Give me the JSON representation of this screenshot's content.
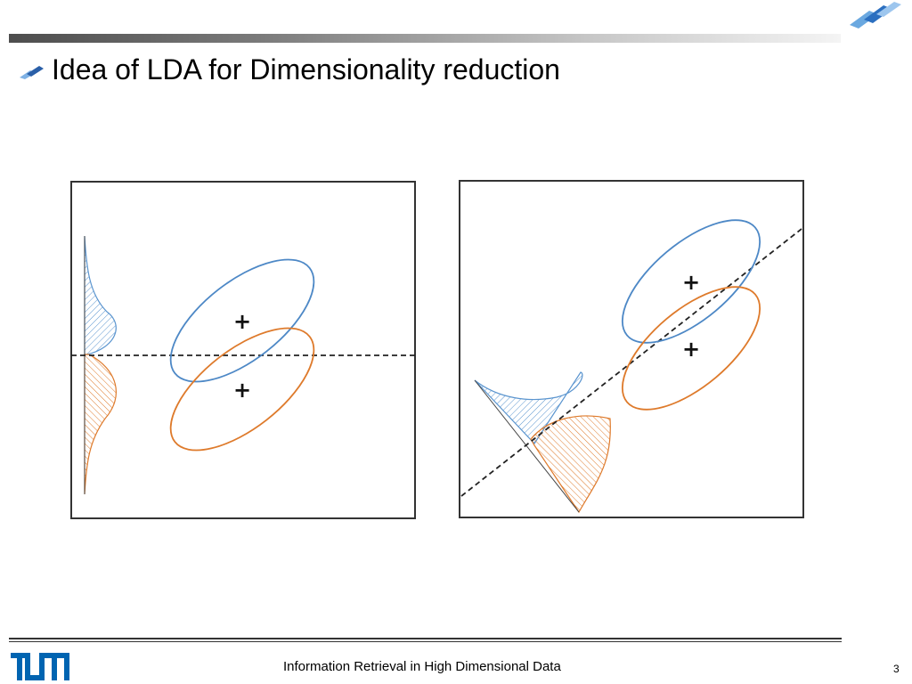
{
  "slide": {
    "title": "Idea of LDA for Dimensionality reduction"
  },
  "footer": {
    "course": "Information Retrieval in High Dimensional Data",
    "page": "3"
  },
  "colors": {
    "class_a": "#4d88c6",
    "class_b": "#de7a2b",
    "projection_line": "#222222",
    "frame": "#333333",
    "brand_blue": "#0064b1"
  },
  "figures": [
    {
      "panel": "left",
      "projection": "horizontal",
      "mean_markers": [
        "+",
        "+"
      ]
    },
    {
      "panel": "right",
      "projection": "diagonal",
      "mean_markers": [
        "+",
        "+"
      ]
    }
  ]
}
